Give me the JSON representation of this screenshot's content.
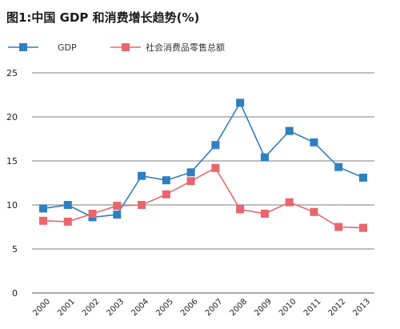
{
  "chart_data": {
    "type": "line",
    "title": "图1:中国 GDP 和消费增长趋势(%)",
    "categories": [
      "2000",
      "2001",
      "2002",
      "2003",
      "2004",
      "2005",
      "2006",
      "2007",
      "2008",
      "2009",
      "2010",
      "2011",
      "2012",
      "2013"
    ],
    "series": [
      {
        "name": "GDP",
        "color": "#2f7fc1",
        "marker": "square",
        "values": [
          9.6,
          10.0,
          8.6,
          8.9,
          13.3,
          12.8,
          13.7,
          16.8,
          21.6,
          15.4,
          18.4,
          17.1,
          14.3,
          13.1
        ]
      },
      {
        "name": "社会消费品零售总额",
        "color": "#e9666c",
        "marker": "square",
        "values": [
          8.2,
          8.1,
          9.0,
          9.9,
          10.0,
          11.2,
          12.7,
          14.2,
          9.5,
          9.0,
          10.3,
          9.2,
          7.5,
          7.4
        ]
      }
    ],
    "yticks": [
      0,
      5,
      10,
      15,
      20,
      25
    ],
    "ylim": [
      0,
      25
    ],
    "xlabel": "",
    "ylabel": "",
    "grid": "horizontal",
    "legend_position": "top-left"
  }
}
